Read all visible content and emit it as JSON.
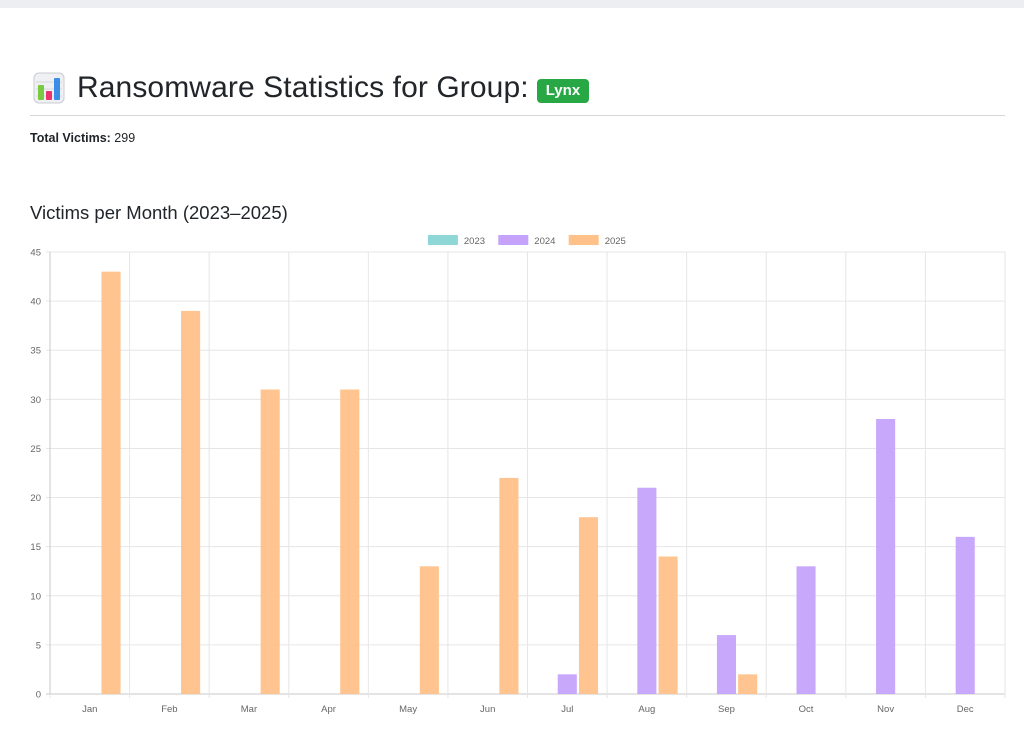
{
  "header": {
    "title": "Ransomware Statistics for Group:",
    "group_badge": "Lynx",
    "icon": "bar-chart-icon"
  },
  "stats": {
    "total_label": "Total Victims:",
    "total_value": "299"
  },
  "section": {
    "title": "Victims per Month (2023–2025)"
  },
  "colors": {
    "badge": "#28a745",
    "series_2023": "#8fd6d6",
    "series_2024": "#c5a3fb",
    "series_2025": "#ffc18a"
  },
  "chart_data": {
    "type": "bar",
    "title": "Victims per Month (2023–2025)",
    "categories": [
      "Jan",
      "Feb",
      "Mar",
      "Apr",
      "May",
      "Jun",
      "Jul",
      "Aug",
      "Sep",
      "Oct",
      "Nov",
      "Dec"
    ],
    "series": [
      {
        "name": "2023",
        "color": "#8fd6d6",
        "values": [
          0,
          0,
          0,
          0,
          0,
          0,
          0,
          0,
          0,
          0,
          0,
          0
        ]
      },
      {
        "name": "2024",
        "color": "#c5a3fb",
        "values": [
          0,
          0,
          0,
          0,
          0,
          0,
          2,
          21,
          6,
          13,
          28,
          16
        ]
      },
      {
        "name": "2025",
        "color": "#ffc18a",
        "values": [
          43,
          39,
          31,
          31,
          13,
          22,
          18,
          14,
          2,
          0,
          0,
          0
        ]
      }
    ],
    "ylim": [
      0,
      45
    ],
    "yticks": [
      0,
      5,
      10,
      15,
      20,
      25,
      30,
      35,
      40,
      45
    ],
    "grid": true,
    "legend": "top-center"
  }
}
